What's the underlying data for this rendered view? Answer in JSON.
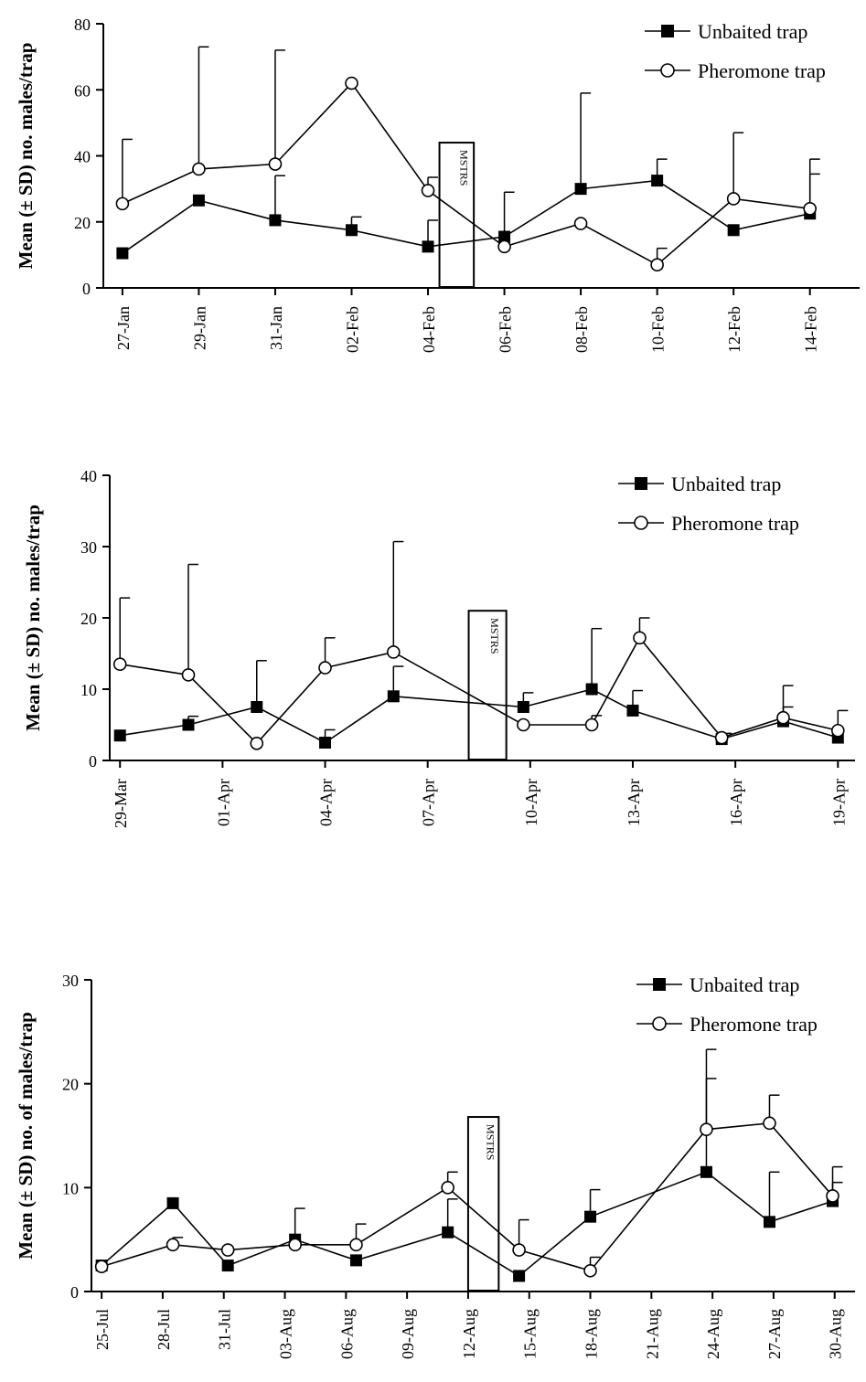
{
  "chart_data": [
    {
      "type": "line",
      "ylabel": "Mean (± SD) no. males/trap",
      "ylim": [
        0,
        80
      ],
      "yticks": [
        0,
        20,
        40,
        60,
        80
      ],
      "x_range": [
        26.5,
        46.3
      ],
      "x_ticks": [
        {
          "x": 27,
          "label": "27-Jan"
        },
        {
          "x": 29,
          "label": "29-Jan"
        },
        {
          "x": 31,
          "label": "31-Jan"
        },
        {
          "x": 33,
          "label": "02-Feb"
        },
        {
          "x": 35,
          "label": "04-Feb"
        },
        {
          "x": 37,
          "label": "06-Feb"
        },
        {
          "x": 39,
          "label": "08-Feb"
        },
        {
          "x": 41,
          "label": "10-Feb"
        },
        {
          "x": 43,
          "label": "12-Feb"
        },
        {
          "x": 45,
          "label": "14-Feb"
        }
      ],
      "series": [
        {
          "name": "Unbaited trap",
          "marker": "square",
          "x": [
            27,
            29,
            31,
            33,
            35,
            37,
            39,
            41,
            43,
            45
          ],
          "y": [
            10.5,
            26.5,
            20.5,
            17.5,
            12.5,
            15.5,
            30,
            32.5,
            17.5,
            22.5
          ],
          "err": [
            0,
            0,
            13.5,
            4,
            8,
            13.5,
            29,
            6.5,
            0,
            12
          ]
        },
        {
          "name": "Pheromone trap",
          "marker": "circle",
          "x": [
            27,
            29,
            31,
            33,
            35,
            37,
            39,
            41,
            43,
            45
          ],
          "y": [
            25.5,
            36,
            37.5,
            62,
            29.5,
            12.5,
            19.5,
            7,
            27,
            24
          ],
          "err": [
            19.5,
            37,
            34.5,
            0,
            4,
            0,
            0,
            5,
            20,
            15
          ]
        }
      ],
      "annotation": {
        "label": "MSTRS",
        "x_from": 35.3,
        "x_to": 36.2,
        "y_top": 44
      },
      "legend": "top-right"
    },
    {
      "type": "line",
      "ylabel": "Mean (± SD) no. males/trap",
      "ylim": [
        0,
        40
      ],
      "yticks": [
        0,
        10,
        20,
        30,
        40
      ],
      "x_range": [
        87.7,
        109.5
      ],
      "x_ticks": [
        {
          "x": 88,
          "label": "29-Mar"
        },
        {
          "x": 91,
          "label": "01-Apr"
        },
        {
          "x": 94,
          "label": "04-Apr"
        },
        {
          "x": 97,
          "label": "07-Apr"
        },
        {
          "x": 100,
          "label": "10-Apr"
        },
        {
          "x": 103,
          "label": "13-Apr"
        },
        {
          "x": 106,
          "label": "16-Apr"
        },
        {
          "x": 109,
          "label": "19-Apr"
        }
      ],
      "series": [
        {
          "name": "Unbaited trap",
          "marker": "square",
          "x": [
            88,
            90,
            92,
            94,
            96,
            99.8,
            101.8,
            103,
            105.6,
            107.4,
            109
          ],
          "y": [
            3.5,
            5,
            7.5,
            2.5,
            9,
            7.5,
            10,
            7,
            3,
            5.5,
            3.2
          ],
          "err": [
            0,
            1.2,
            6.5,
            1.8,
            4.2,
            2,
            8.5,
            2.8,
            0.8,
            2,
            0
          ]
        },
        {
          "name": "Pheromone trap",
          "marker": "circle",
          "x": [
            88,
            90,
            92,
            94,
            96,
            99.8,
            101.8,
            103.2,
            105.6,
            107.4,
            109
          ],
          "y": [
            13.5,
            12,
            2.4,
            13,
            15.2,
            5,
            5,
            17.2,
            3.2,
            6,
            4.2
          ],
          "err": [
            9.3,
            15.5,
            0,
            4.2,
            15.5,
            0,
            1.3,
            2.8,
            0,
            4.5,
            2.8
          ]
        }
      ],
      "annotation": {
        "label": "MSTRS",
        "x_from": 98.2,
        "x_to": 99.3,
        "y_top": 21
      },
      "legend": "top-right"
    },
    {
      "type": "line",
      "ylabel": "Mean (± SD) no. of males/trap",
      "ylim": [
        0,
        30
      ],
      "yticks": [
        0,
        10,
        20,
        30
      ],
      "x_range": [
        205.5,
        243
      ],
      "x_ticks": [
        {
          "x": 206,
          "label": "25-Jul"
        },
        {
          "x": 209,
          "label": "28-Jul"
        },
        {
          "x": 212,
          "label": "31-Jul"
        },
        {
          "x": 215,
          "label": "03-Aug"
        },
        {
          "x": 218,
          "label": "06-Aug"
        },
        {
          "x": 221,
          "label": "09-Aug"
        },
        {
          "x": 224,
          "label": "12-Aug"
        },
        {
          "x": 227,
          "label": "15-Aug"
        },
        {
          "x": 230,
          "label": "18-Aug"
        },
        {
          "x": 233,
          "label": "21-Aug"
        },
        {
          "x": 236,
          "label": "24-Aug"
        },
        {
          "x": 239,
          "label": "27-Aug"
        },
        {
          "x": 242,
          "label": "30-Aug"
        }
      ],
      "series": [
        {
          "name": "Unbaited trap",
          "marker": "square",
          "x": [
            206,
            209.5,
            212.2,
            215.5,
            218.5,
            223,
            226.5,
            230,
            235.7,
            238.8,
            241.9
          ],
          "y": [
            2.5,
            8.5,
            2.5,
            5,
            3,
            5.7,
            1.5,
            7.2,
            11.5,
            6.7,
            8.7
          ],
          "err": [
            0,
            0,
            0,
            3,
            0,
            3.2,
            0,
            2.6,
            9,
            4.8,
            1.8
          ]
        },
        {
          "name": "Pheromone trap",
          "marker": "circle",
          "x": [
            206,
            209.5,
            212.2,
            215.5,
            218.5,
            223,
            226.5,
            230,
            235.7,
            238.8,
            241.9
          ],
          "y": [
            2.4,
            4.5,
            4,
            4.5,
            4.5,
            10,
            4,
            2,
            15.6,
            16.2,
            9.2
          ],
          "err": [
            0,
            0.7,
            0,
            0,
            2,
            1.5,
            2.9,
            1.3,
            7.7,
            2.7,
            2.8
          ]
        }
      ],
      "annotation": {
        "label": "MSTRS",
        "x_from": 224,
        "x_to": 225.5,
        "y_top": 16.8
      },
      "legend": "top-right"
    }
  ]
}
